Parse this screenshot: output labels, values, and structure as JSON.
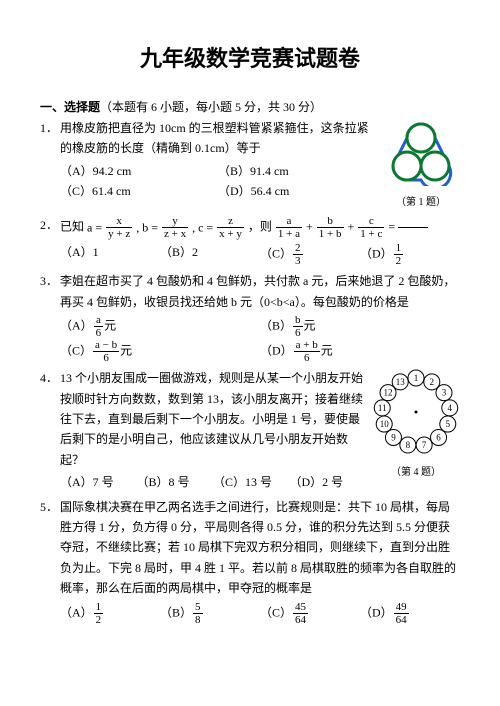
{
  "title": "九年级数学竞赛试题卷",
  "section1": {
    "head": "一、选择题",
    "note": "（本题有 6 小题，每小题 5 分，共 30 分）"
  },
  "q1": {
    "num": "1．",
    "text": "用橡皮筋把直径为 10cm 的三根塑料管紧紧箍住，这条拉紧的橡皮筋的长度（精确到 0.1cm）等于",
    "a": "（A）94.2 cm",
    "b": "（B）91.4 cm",
    "c": "（C）61.4 cm",
    "d": "（D）56.4 cm",
    "cap": "（第 1 题）"
  },
  "q2": {
    "num": "2．",
    "pre": "已知",
    "mid1": "，则",
    "mid2": " =",
    "a": "（A）1",
    "b": "（B）2",
    "c": "（C）",
    "d": "（D）",
    "c_frac_n": "2",
    "c_frac_d": "3",
    "d_frac_n": "1",
    "d_frac_d": "2",
    "fa_n": "x",
    "fa_d": "y + z",
    "fb_n": "y",
    "fb_d": "z + x",
    "fc_n": "z",
    "fc_d": "x + y",
    "s1_n": "a",
    "s1_d": "1 + a",
    "s2_n": "b",
    "s2_d": "1 + b",
    "s3_n": "c",
    "s3_d": "1 + c",
    "aeq": "a =",
    "beq": ", b =",
    "ceq": ", c ="
  },
  "q3": {
    "num": "3．",
    "text": "李姐在超市买了 4 包酸奶和 4 包鲜奶，共付款 a 元，后来她退了 2 包酸奶，再买 4 包鲜奶，收银员找还给她 b 元（0<b<a）。每包酸奶的价格是",
    "a": "（A）",
    "a_n": "a",
    "a_d": "6",
    "a_suf": "元",
    "b": "（B）",
    "b_n": "b",
    "b_d": "6",
    "b_suf": "元",
    "c": "（C）",
    "c_n": "a − b",
    "c_d": "6",
    "c_suf": "元",
    "d": "（D）",
    "d_n": "a + b",
    "d_d": "6",
    "d_suf": "元"
  },
  "q4": {
    "num": "4．",
    "text": "13 个小朋友围成一圈做游戏，规则是从某一个小朋友开始按顺时针方向数数，数到第 13，该小朋友离开；接着继续往下去，直到最后剩下一个小朋友。小明是 1 号，要使最后剩下的是小明自己，他应该建议从几号小朋友开始数起？",
    "a": "（A）7 号",
    "b": "（B）8 号",
    "c": "（C）13 号",
    "d": "（D）2 号",
    "cap": "（第 4 题）",
    "nodes": [
      "1",
      "2",
      "3",
      "4",
      "5",
      "6",
      "7",
      "8",
      "9",
      "10",
      "11",
      "12",
      "13"
    ]
  },
  "q5": {
    "num": "5．",
    "text": "国际象棋决赛在甲乙两名选手之间进行，比赛规则是：共下 10 局棋，每局胜方得 1 分，负方得 0 分，平局则各得 0.5 分，谁的积分先达到 5.5 分便获夺冠，不继续比赛；若 10 局棋下完双方积分相同，则继续下，直到分出胜负为止。下完 8 局时，甲 4 胜 1 平。若以前 8 局棋取胜的频率为各自取胜的概率，那么在后面的两局棋中，甲夺冠的概率是",
    "a": "（A）",
    "a_n": "1",
    "a_d": "2",
    "b": "（B）",
    "b_n": "5",
    "b_d": "8",
    "c": "（C）",
    "c_n": "45",
    "c_d": "64",
    "d": "（D）",
    "d_n": "49",
    "d_d": "64"
  },
  "svg": {
    "tubes": {
      "stroke": "#0b7a2e",
      "fill": "#ffffff",
      "band": "#1a5fd6"
    },
    "clock": {
      "stroke": "#000000"
    }
  }
}
